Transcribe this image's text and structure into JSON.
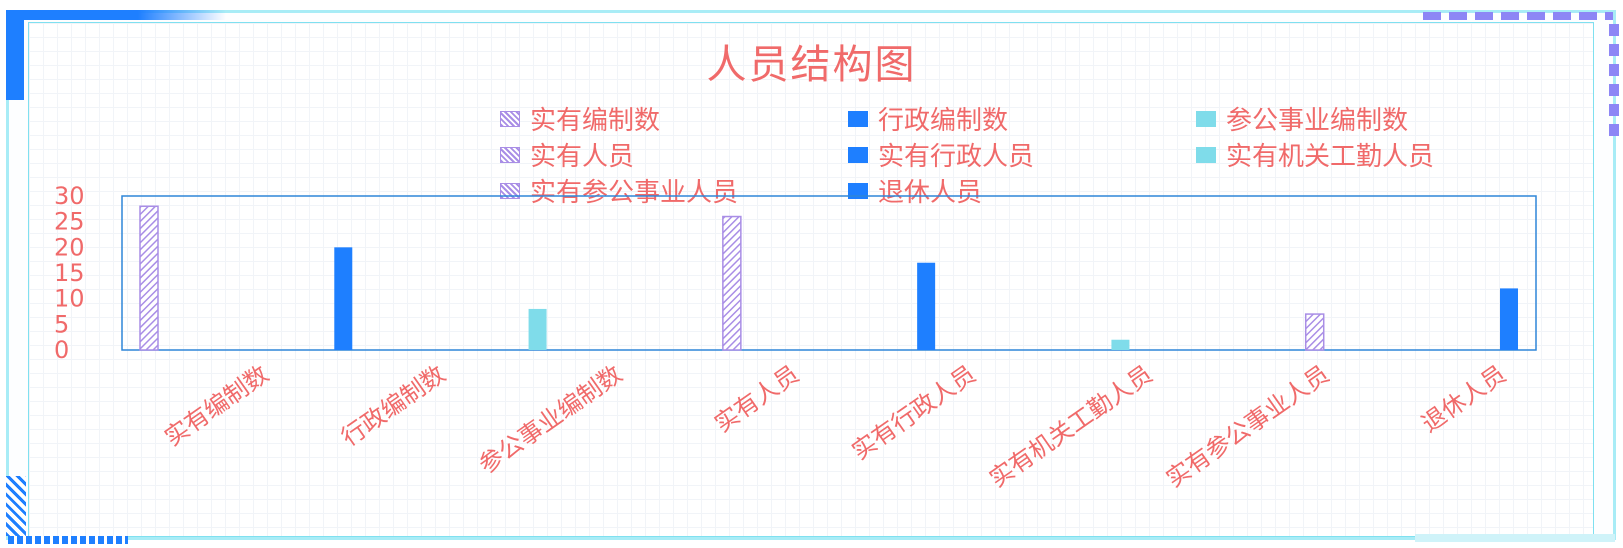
{
  "colors": {
    "text": "#f06a6a",
    "hatch_series": "#a98ee6",
    "blue_series": "#1e7fff",
    "cyan_series": "#7fdcea",
    "plot_border": "#2f86d8"
  },
  "chart_data": {
    "type": "bar",
    "title": "人员结构图",
    "xlabel": "",
    "ylabel": "",
    "ylim": [
      0,
      30
    ],
    "yticks": [
      0,
      5,
      10,
      15,
      20,
      25,
      30
    ],
    "categories": [
      "实有编制数",
      "行政编制数",
      "参公事业编制数",
      "实有人员",
      "实有行政人员",
      "实有机关工勤人员",
      "实有参公事业人员",
      "退休人员"
    ],
    "series": [
      {
        "name": "实有编制数",
        "category_index": 0,
        "value": 28,
        "style": "hatch"
      },
      {
        "name": "行政编制数",
        "category_index": 1,
        "value": 20,
        "style": "blue"
      },
      {
        "name": "参公事业编制数",
        "category_index": 2,
        "value": 8,
        "style": "cyan"
      },
      {
        "name": "实有人员",
        "category_index": 3,
        "value": 26,
        "style": "hatch"
      },
      {
        "name": "实有行政人员",
        "category_index": 4,
        "value": 17,
        "style": "blue"
      },
      {
        "name": "实有机关工勤人员",
        "category_index": 5,
        "value": 2,
        "style": "cyan"
      },
      {
        "name": "实有参公事业人员",
        "category_index": 6,
        "value": 7,
        "style": "hatch"
      },
      {
        "name": "退休人员",
        "category_index": 7,
        "value": 12,
        "style": "blue"
      }
    ],
    "legend_position": "top-right",
    "grid": false
  }
}
